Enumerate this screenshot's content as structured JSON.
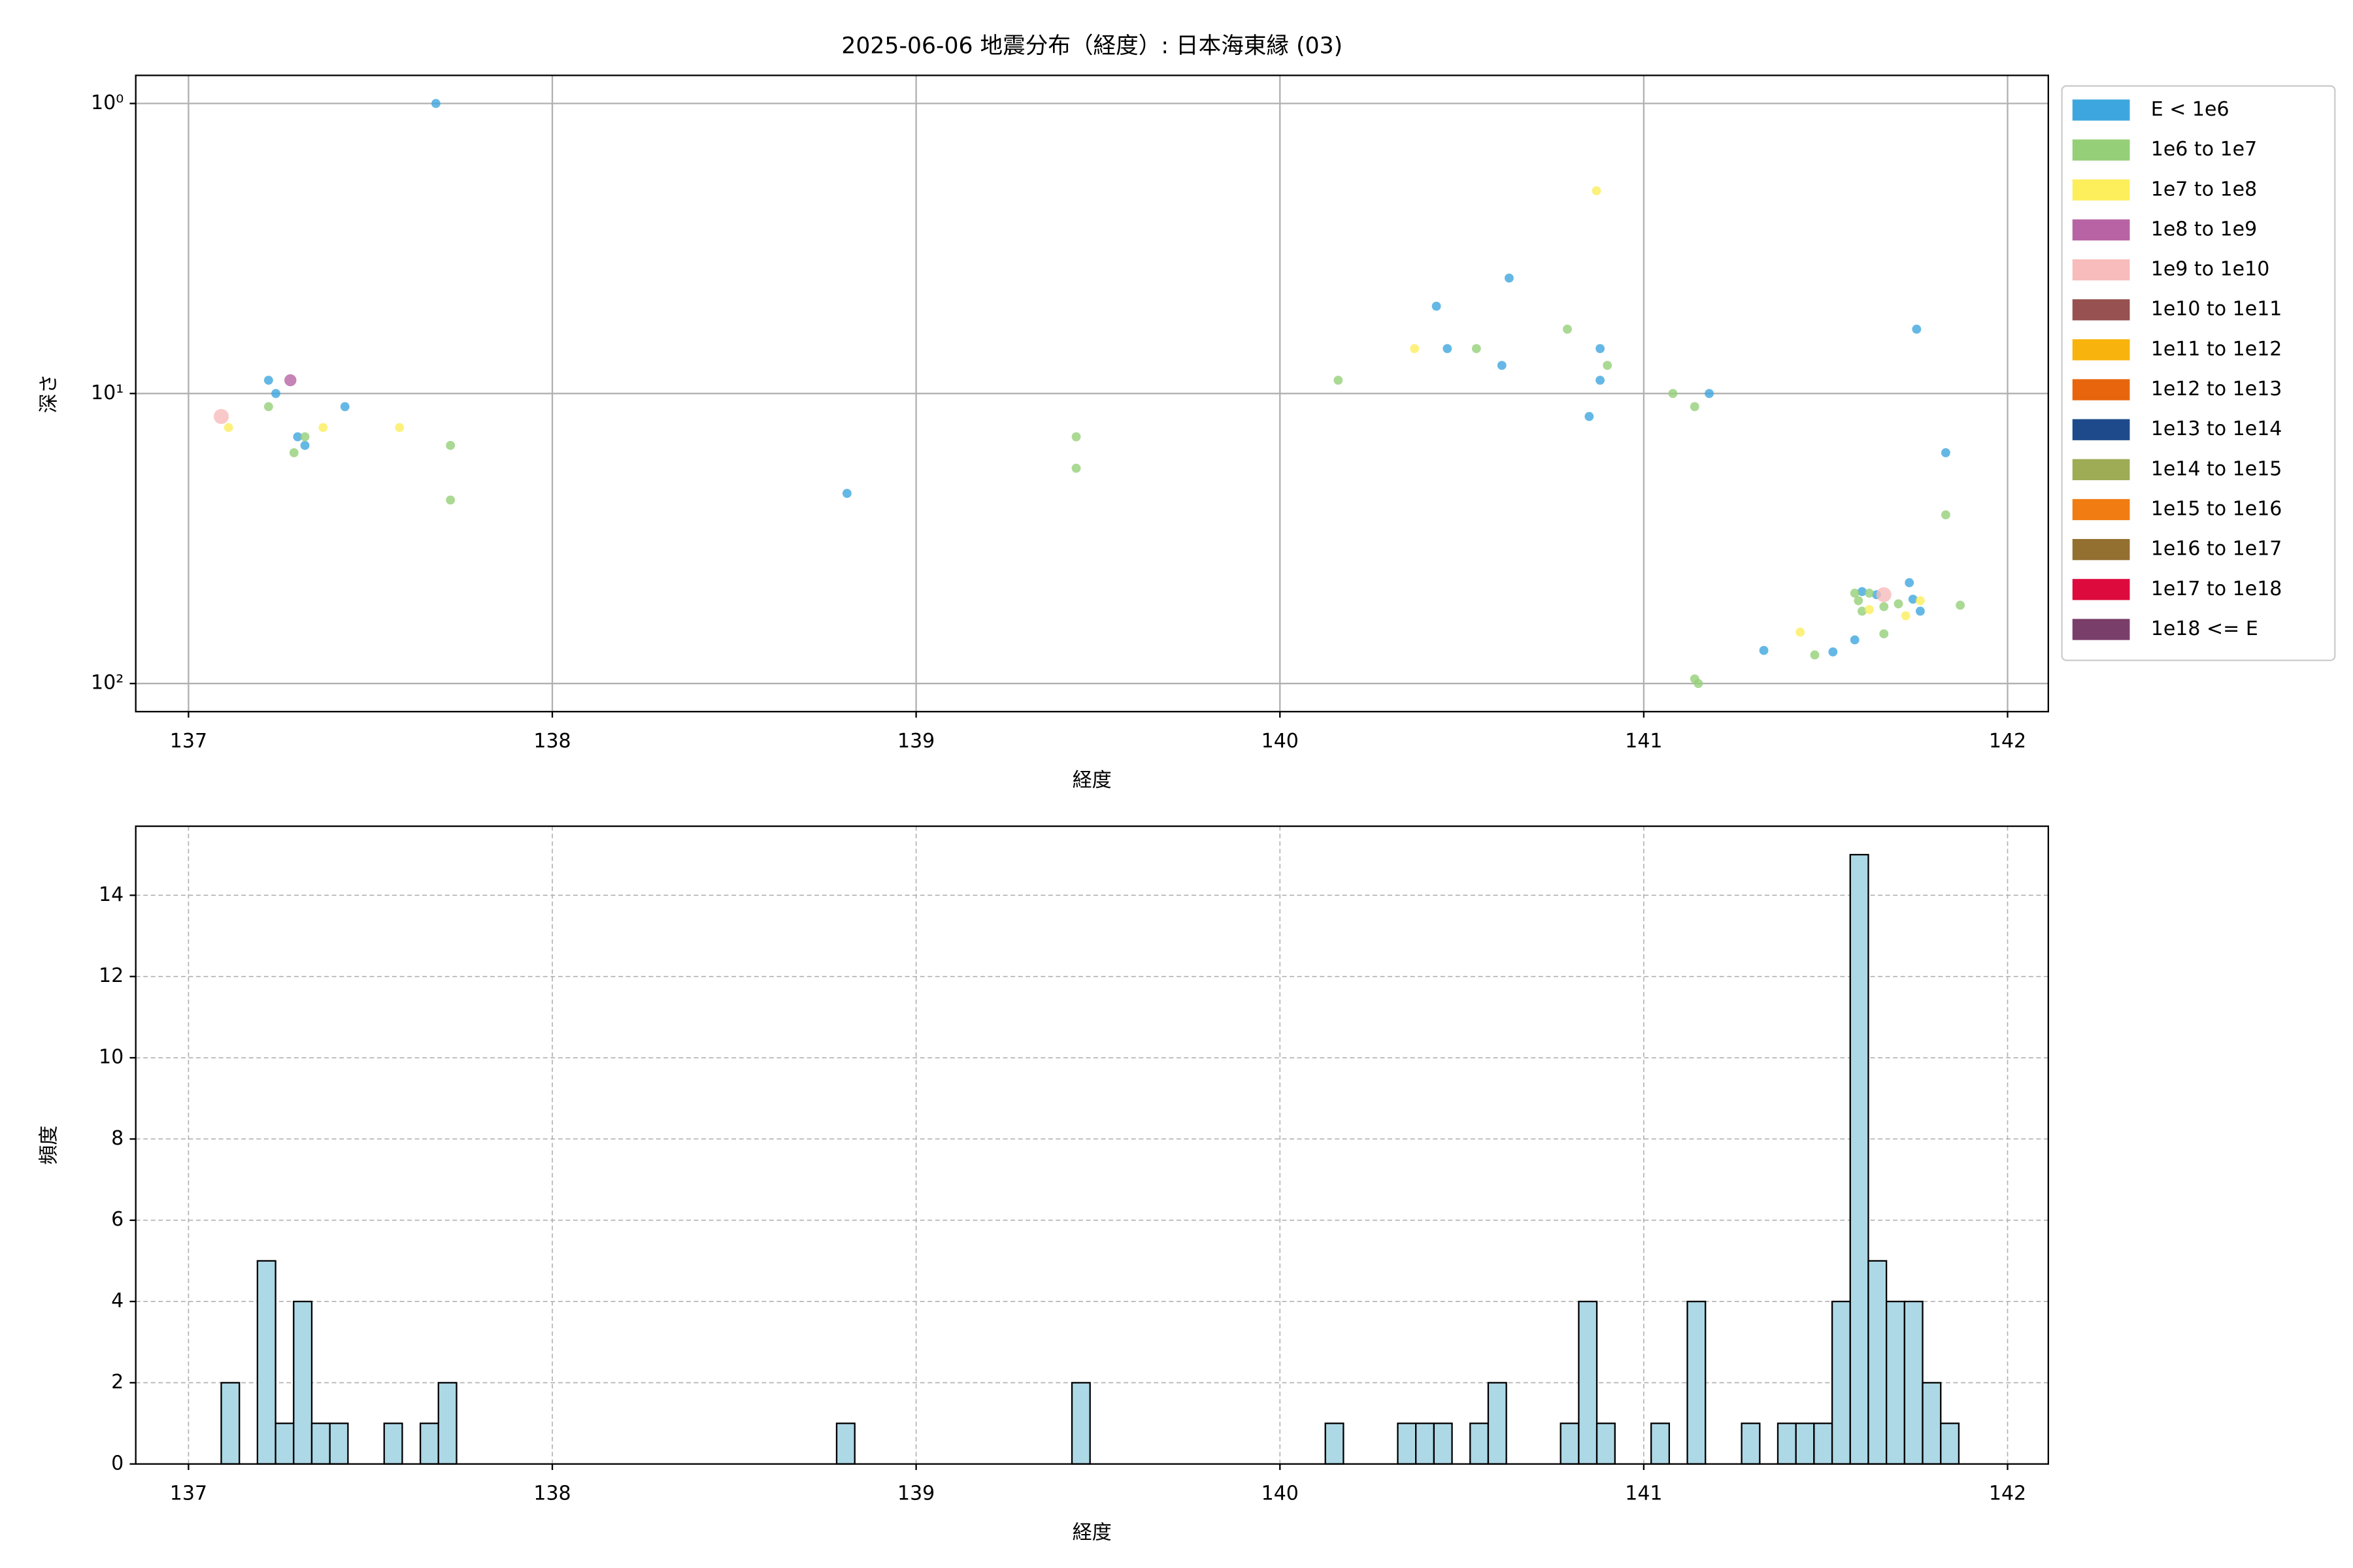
{
  "chart_data": [
    {
      "type": "scatter",
      "title": "2025-06-06 地震分布（経度）: 日本海東縁 (03)",
      "xlabel": "経度",
      "ylabel": "深さ",
      "xlim": [
        136.855,
        142.112
      ],
      "ylim": [
        125,
        0.8
      ],
      "log_y": true,
      "grid": true,
      "legend": "outside right",
      "xticks": [
        137,
        138,
        139,
        140,
        141,
        142
      ],
      "yticks": [
        {
          "value": 1,
          "label": "10⁰"
        },
        {
          "value": 10,
          "label": "10¹"
        },
        {
          "value": 100,
          "label": "10²"
        }
      ],
      "series": [
        {
          "name": "E < 1e6",
          "color": "#3ea6de",
          "x": [
            137.68,
            137.22,
            137.24,
            137.3,
            137.32,
            137.43,
            138.81,
            140.43,
            140.46,
            140.61,
            140.63,
            140.88,
            140.88,
            140.85,
            141.18,
            141.75,
            141.83,
            141.33,
            141.52,
            141.58,
            141.6,
            141.73,
            141.74,
            141.76,
            141.64
          ],
          "values": [
            1.0,
            9.0,
            10.0,
            14.1,
            15.1,
            11.1,
            22.1,
            5.0,
            7.0,
            8.0,
            4.0,
            7.0,
            9.0,
            12.0,
            10.0,
            6.0,
            16.0,
            76.9,
            77.8,
            70.7,
            48.2,
            44.9,
            51.2,
            56.3,
            49.4
          ]
        },
        {
          "name": "1e6 to 1e7",
          "color": "#95cf78",
          "x": [
            137.22,
            137.32,
            137.29,
            137.72,
            137.72,
            139.44,
            139.44,
            140.16,
            140.54,
            140.79,
            140.9,
            141.08,
            141.14,
            141.14,
            141.15,
            141.47,
            141.66,
            141.58,
            141.59,
            141.6,
            141.62,
            141.66,
            141.7,
            141.83,
            141.87
          ],
          "values": [
            11.1,
            14.1,
            16.0,
            15.1,
            23.3,
            14.1,
            18.1,
            9.0,
            7.0,
            6.0,
            8.0,
            10.0,
            11.1,
            96.4,
            100,
            79.7,
            67.4,
            48.8,
            51.8,
            56.3,
            48.8,
            54.3,
            53.1,
            26.2,
            53.7
          ]
        },
        {
          "name": "1e7 to 1e8",
          "color": "#fdee5c",
          "x": [
            137.11,
            137.37,
            137.58,
            140.37,
            140.87,
            141.43,
            141.62,
            141.72,
            141.76
          ],
          "values": [
            13.1,
            13.1,
            13.1,
            7.0,
            2.0,
            66.5,
            55.6,
            58.4,
            51.8
          ]
        },
        {
          "name": "1e8 to 1e9",
          "color": "#b864a4",
          "x": [
            137.28
          ],
          "values": [
            9.0
          ]
        },
        {
          "name": "1e9 to 1e10",
          "color": "#f7bcbb",
          "x": [
            137.09,
            141.66
          ],
          "values": [
            12.0,
            49.4
          ]
        },
        {
          "name": "1e10 to 1e11",
          "color": "#975150",
          "x": [],
          "values": []
        },
        {
          "name": "1e11 to 1e12",
          "color": "#f8b40c",
          "x": [],
          "values": []
        },
        {
          "name": "1e12 to 1e13",
          "color": "#e8650e",
          "x": [],
          "values": []
        },
        {
          "name": "1e13 to 1e14",
          "color": "#1e4a8c",
          "x": [],
          "values": []
        },
        {
          "name": "1e14 to 1e15",
          "color": "#9dac55",
          "x": [],
          "values": []
        },
        {
          "name": "1e15 to 1e16",
          "color": "#f07c12",
          "x": [],
          "values": []
        },
        {
          "name": "1e16 to 1e17",
          "color": "#936f30",
          "x": [],
          "values": []
        },
        {
          "name": "1e17 to 1e18",
          "color": "#dd0a3d",
          "x": [],
          "values": []
        },
        {
          "name": "1e18 <= E",
          "color": "#7a3e6b",
          "x": [],
          "values": []
        }
      ]
    },
    {
      "type": "histogram",
      "xlabel": "経度",
      "ylabel": "頻度",
      "color": "#add8e6",
      "edgecolor": "#000000",
      "xlim": [
        136.855,
        142.112
      ],
      "ylim": [
        0,
        15.7
      ],
      "grid": true,
      "xticks": [
        137,
        138,
        139,
        140,
        141,
        142
      ],
      "yticks": [
        0,
        2,
        4,
        6,
        8,
        10,
        12,
        14
      ],
      "bins": [
        137.09,
        137.1398,
        137.1895,
        137.2393,
        137.289,
        137.3388,
        137.3885,
        137.4383,
        137.488,
        137.5378,
        137.5875,
        137.6373,
        137.687,
        137.7368,
        137.7865,
        137.8363,
        137.886,
        137.9358,
        137.9855,
        138.0353,
        138.085,
        138.1348,
        138.1845,
        138.2343,
        138.284,
        138.3338,
        138.3835,
        138.4333,
        138.483,
        138.5328,
        138.5825,
        138.6323,
        138.682,
        138.7318,
        138.7815,
        138.8313,
        138.881,
        138.9308,
        138.9805,
        139.0303,
        139.08,
        139.1298,
        139.1795,
        139.2293,
        139.279,
        139.3288,
        139.3785,
        139.4283,
        139.478,
        139.5278,
        139.5775,
        139.6273,
        139.677,
        139.7268,
        139.7765,
        139.8263,
        139.876,
        139.9258,
        139.9755,
        140.0253,
        140.075,
        140.1248,
        140.1745,
        140.2243,
        140.274,
        140.3238,
        140.3735,
        140.4233,
        140.473,
        140.5228,
        140.5725,
        140.6223,
        140.672,
        140.7218,
        140.7715,
        140.8213,
        140.871,
        140.9208,
        140.9705,
        141.0203,
        141.07,
        141.1198,
        141.1695,
        141.2193,
        141.269,
        141.3188,
        141.3685,
        141.4183,
        141.468,
        141.5178,
        141.5675,
        141.6173,
        141.667,
        141.7168,
        141.7665,
        141.8163,
        141.866
      ],
      "values": [
        2,
        0,
        5,
        1,
        4,
        1,
        1,
        0,
        0,
        1,
        0,
        1,
        2,
        0,
        0,
        0,
        0,
        0,
        0,
        0,
        0,
        0,
        0,
        0,
        0,
        0,
        0,
        0,
        0,
        0,
        0,
        0,
        0,
        0,
        1,
        0,
        0,
        0,
        0,
        0,
        0,
        0,
        0,
        0,
        0,
        0,
        0,
        2,
        0,
        0,
        0,
        0,
        0,
        0,
        0,
        0,
        0,
        0,
        0,
        0,
        0,
        1,
        0,
        0,
        0,
        1,
        1,
        1,
        0,
        1,
        2,
        0,
        0,
        0,
        1,
        4,
        1,
        0,
        0,
        1,
        0,
        4,
        0,
        0,
        1,
        0,
        1,
        1,
        1,
        4,
        15,
        5,
        4,
        4,
        2,
        1
      ]
    }
  ]
}
